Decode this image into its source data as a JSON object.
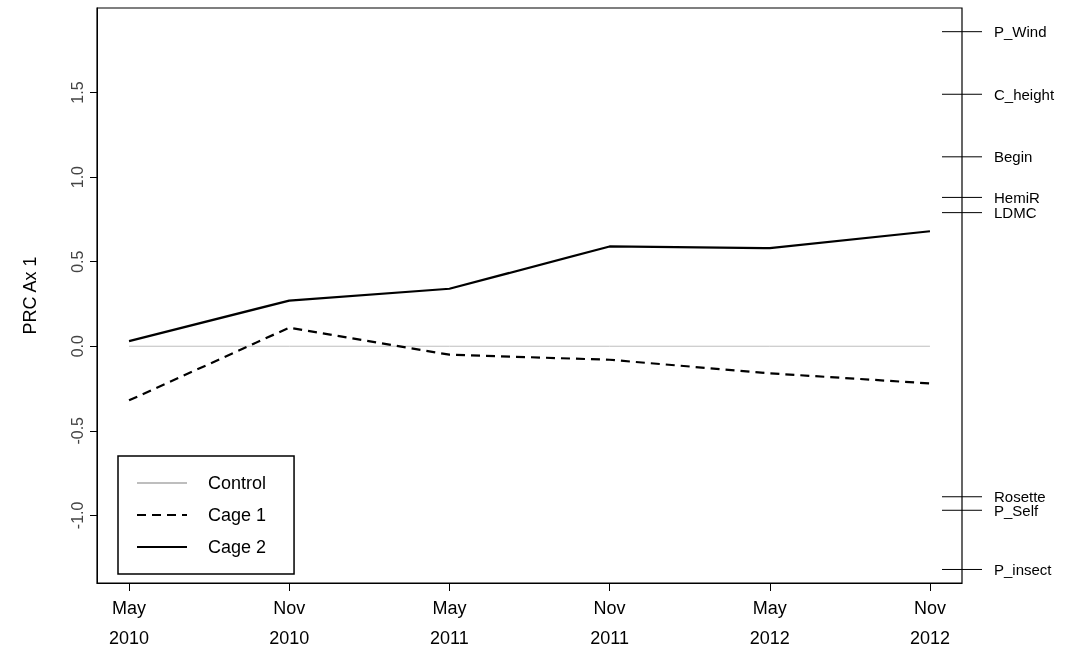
{
  "chart_data": {
    "type": "line",
    "ylabel": "PRC Ax 1",
    "categories": [
      "May 2010",
      "Nov 2010",
      "May 2011",
      "Nov 2011",
      "May 2012",
      "Nov 2012"
    ],
    "series": [
      {
        "name": "Control",
        "color": "#bebebe",
        "line_style": "solid",
        "values": [
          0,
          0,
          0,
          0,
          0,
          0
        ]
      },
      {
        "name": "Cage 1",
        "color": "#000000",
        "line_style": "dashed",
        "values": [
          -0.32,
          0.11,
          -0.05,
          -0.08,
          -0.16,
          -0.22
        ]
      },
      {
        "name": "Cage 2",
        "color": "#000000",
        "line_style": "solid",
        "values": [
          0.03,
          0.27,
          0.34,
          0.59,
          0.58,
          0.68
        ]
      }
    ],
    "ylim": [
      -1.4,
      2.0
    ],
    "yticks": [
      {
        "value": -1,
        "label": "-1.0"
      },
      -0.5,
      {
        "value": 0,
        "label": "0.0"
      },
      0.5,
      {
        "value": 1,
        "label": "1.0"
      },
      1.5
    ],
    "ref_lines": [
      {
        "axis": "y",
        "value": 1.86,
        "label": "P_Wind"
      },
      {
        "axis": "y",
        "value": 1.49,
        "label": "C_height"
      },
      {
        "axis": "y",
        "value": 1.12,
        "label": "Begin"
      },
      {
        "axis": "y",
        "value": 0.88,
        "label": "HemiR"
      },
      {
        "axis": "y",
        "value": 0.79,
        "label": "LDMC"
      },
      {
        "axis": "y",
        "value": -0.89,
        "label": "Rosette"
      },
      {
        "axis": "y",
        "value": -0.97,
        "label": "P_Self"
      },
      {
        "axis": "y",
        "value": -1.32,
        "label": "P_insect"
      }
    ],
    "marker": "none",
    "grid": false,
    "legend": "bottom left"
  }
}
